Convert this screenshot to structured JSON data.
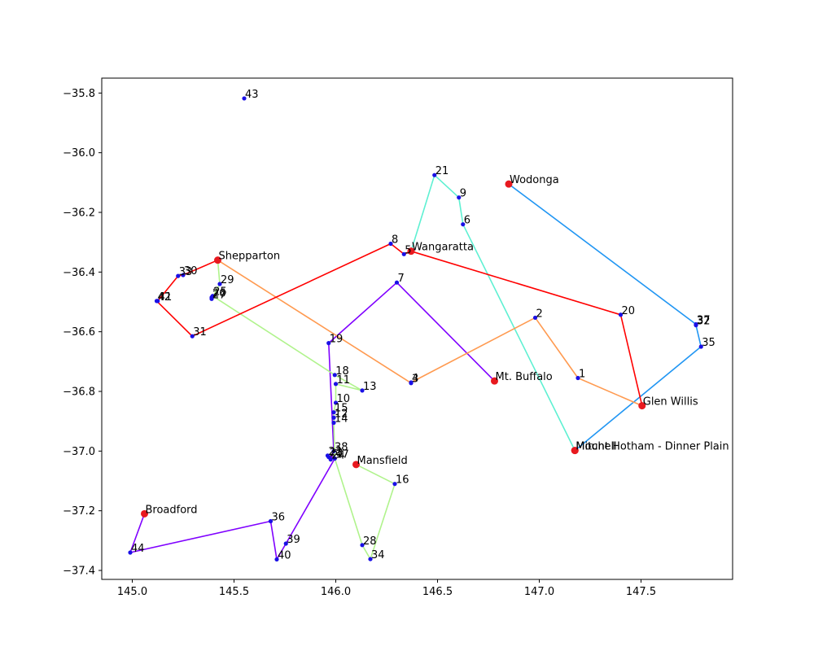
{
  "chart_data": {
    "type": "scatter",
    "title": "",
    "xlabel": "",
    "ylabel": "",
    "xlim": [
      144.85,
      147.95
    ],
    "ylim": [
      -37.43,
      -35.75
    ],
    "grid": false,
    "x_ticks": [
      145.0,
      145.5,
      146.0,
      146.5,
      147.0,
      147.5
    ],
    "x_tick_labels": [
      "145.0",
      "145.5",
      "146.0",
      "146.5",
      "147.0",
      "147.5"
    ],
    "y_ticks": [
      -35.8,
      -36.0,
      -36.2,
      -36.4,
      -36.6,
      -36.8,
      -37.0,
      -37.2,
      -37.4
    ],
    "y_tick_labels": [
      "−35.8",
      "−36.0",
      "−36.2",
      "−36.4",
      "−36.6",
      "−36.8",
      "−37.0",
      "−37.2",
      "−37.4"
    ],
    "colors": {
      "depot": "#e8191f",
      "customer": "#1a10e6",
      "route_purple": "#7f00ff",
      "route_blue": "#2196f3",
      "route_teal": "#5ef0d2",
      "route_lightgreen": "#b0f38c",
      "route_orange": "#ff9a50",
      "route_red": "#ff0000"
    },
    "depots": [
      {
        "name": "Wodonga",
        "x": 146.85,
        "y": -36.105
      },
      {
        "name": "Wangaratta",
        "x": 146.37,
        "y": -36.33
      },
      {
        "name": "Shepparton",
        "x": 145.42,
        "y": -36.36
      },
      {
        "name": "Mt. Buffalo",
        "x": 146.78,
        "y": -36.765
      },
      {
        "name": "Glen Willis",
        "x": 147.505,
        "y": -36.848
      },
      {
        "name": "Mansfield",
        "x": 146.1,
        "y": -37.045
      },
      {
        "name": "Mount Hotham - Dinner Plain",
        "x": 147.175,
        "y": -36.998
      },
      {
        "name": "Mitchell",
        "x": 147.175,
        "y": -36.998
      },
      {
        "name": "Broadford",
        "x": 145.06,
        "y": -37.21
      }
    ],
    "points": [
      {
        "label": "1",
        "x": 147.19,
        "y": -36.755
      },
      {
        "label": "2",
        "x": 146.98,
        "y": -36.553
      },
      {
        "label": "3",
        "x": 146.37,
        "y": -36.772
      },
      {
        "label": "4",
        "x": 146.37,
        "y": -36.77
      },
      {
        "label": "5",
        "x": 146.335,
        "y": -36.34
      },
      {
        "label": "6",
        "x": 146.625,
        "y": -36.24
      },
      {
        "label": "7",
        "x": 146.3,
        "y": -36.435
      },
      {
        "label": "8",
        "x": 146.27,
        "y": -36.305
      },
      {
        "label": "9",
        "x": 146.605,
        "y": -36.15
      },
      {
        "label": "10",
        "x": 146.0,
        "y": -36.838
      },
      {
        "label": "11",
        "x": 146.0,
        "y": -36.775
      },
      {
        "label": "12",
        "x": 145.99,
        "y": -36.888
      },
      {
        "label": "13",
        "x": 146.13,
        "y": -36.797
      },
      {
        "label": "14",
        "x": 145.99,
        "y": -36.905
      },
      {
        "label": "15",
        "x": 145.99,
        "y": -36.87
      },
      {
        "label": "16",
        "x": 146.29,
        "y": -37.11
      },
      {
        "label": "17",
        "x": 145.995,
        "y": -37.025
      },
      {
        "label": "18",
        "x": 145.995,
        "y": -36.745
      },
      {
        "label": "19",
        "x": 145.965,
        "y": -36.638
      },
      {
        "label": "20",
        "x": 147.4,
        "y": -36.543
      },
      {
        "label": "21",
        "x": 146.485,
        "y": -36.075
      },
      {
        "label": "22",
        "x": 145.96,
        "y": -37.015
      },
      {
        "label": "23",
        "x": 145.965,
        "y": -37.02
      },
      {
        "label": "24",
        "x": 145.975,
        "y": -37.028
      },
      {
        "label": "25",
        "x": 145.395,
        "y": -36.48
      },
      {
        "label": "26",
        "x": 145.39,
        "y": -36.485
      },
      {
        "label": "27",
        "x": 145.39,
        "y": -36.49
      },
      {
        "label": "28",
        "x": 146.13,
        "y": -37.315
      },
      {
        "label": "29",
        "x": 145.43,
        "y": -36.44
      },
      {
        "label": "30",
        "x": 145.25,
        "y": -36.41
      },
      {
        "label": "31",
        "x": 145.295,
        "y": -36.615
      },
      {
        "label": "32",
        "x": 147.77,
        "y": -36.578
      },
      {
        "label": "33",
        "x": 145.225,
        "y": -36.413
      },
      {
        "label": "34",
        "x": 146.17,
        "y": -37.362
      },
      {
        "label": "35",
        "x": 147.795,
        "y": -36.65
      },
      {
        "label": "36",
        "x": 145.68,
        "y": -37.235
      },
      {
        "label": "37",
        "x": 147.77,
        "y": -36.575
      },
      {
        "label": "38",
        "x": 145.99,
        "y": -37.0
      },
      {
        "label": "39",
        "x": 145.755,
        "y": -37.31
      },
      {
        "label": "40",
        "x": 145.71,
        "y": -37.363
      },
      {
        "label": "41",
        "x": 145.125,
        "y": -36.497
      },
      {
        "label": "42",
        "x": 145.12,
        "y": -36.497
      },
      {
        "label": "43",
        "x": 145.55,
        "y": -35.818
      },
      {
        "label": "44",
        "x": 144.99,
        "y": -37.34
      }
    ],
    "routes": [
      {
        "color": "#7f00ff",
        "path": [
          "Mt. Buffalo",
          "7",
          "19",
          "38",
          "24",
          "23",
          "22",
          "17",
          "39",
          "40",
          "36",
          "44",
          "Broadford"
        ]
      },
      {
        "color": "#2196f3",
        "path": [
          "Wodonga",
          "37",
          "32",
          "35",
          "Mount Hotham - Dinner Plain"
        ]
      },
      {
        "color": "#5ef0d2",
        "path": [
          "Mount Hotham - Dinner Plain",
          "6",
          "9",
          "21",
          "Wangaratta"
        ]
      },
      {
        "color": "#b0f38c",
        "path": [
          "Shepparton",
          "29",
          "27",
          "26",
          "25",
          "18",
          "13",
          "11",
          "10",
          "15",
          "12",
          "14",
          "17",
          "28",
          "34",
          "16",
          "Mansfield"
        ]
      },
      {
        "color": "#ff9a50",
        "path": [
          "Shepparton",
          "3",
          "4",
          "2",
          "1",
          "Glen Willis"
        ]
      },
      {
        "color": "#ff0000",
        "path": [
          "Glen Willis",
          "20",
          "Wangaratta",
          "5",
          "8",
          "31",
          "42",
          "41",
          "33",
          "30",
          "Shepparton"
        ]
      }
    ]
  }
}
